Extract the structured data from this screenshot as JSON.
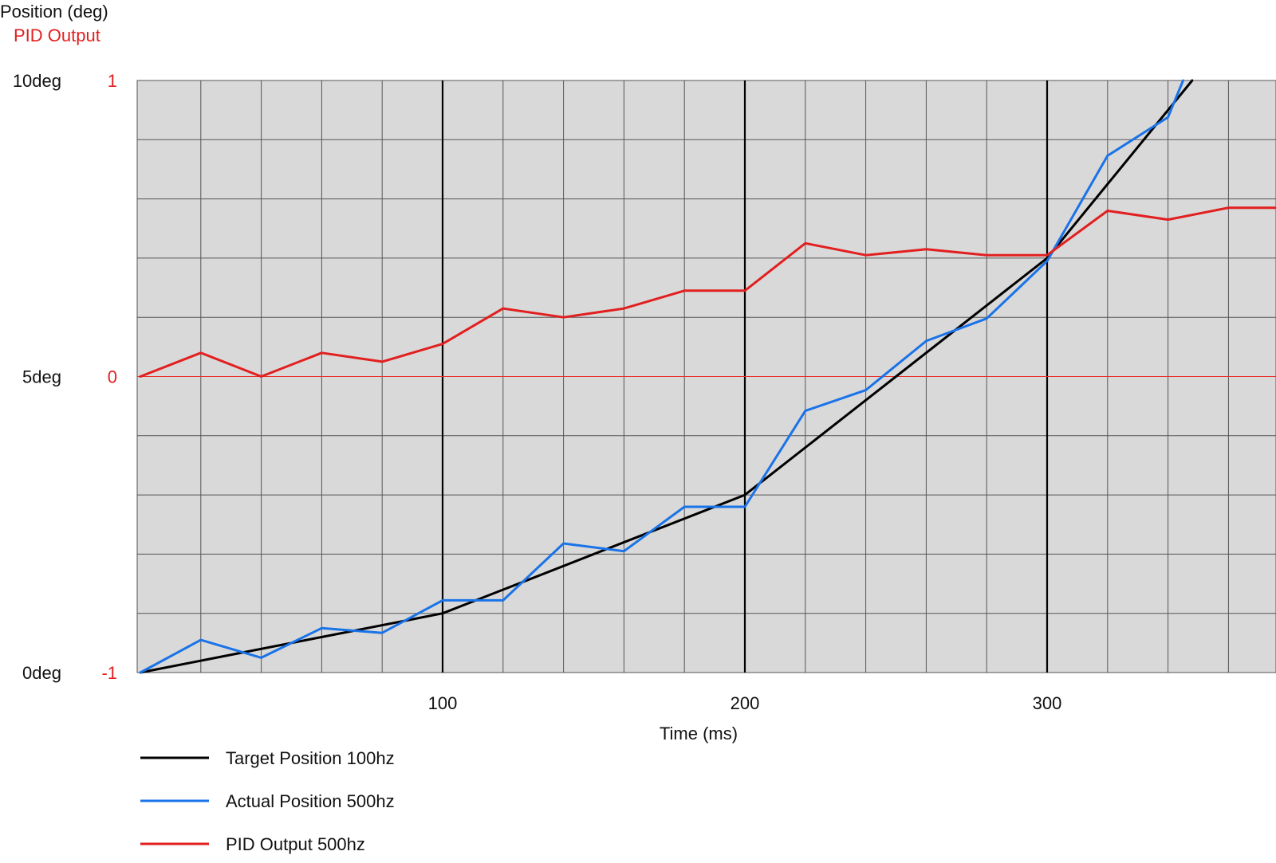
{
  "chart_data": {
    "type": "line",
    "axis_titles": {
      "y_left": "Position (deg)",
      "y_right": "PID Output",
      "x": "Time (ms)"
    },
    "x_axis": {
      "range": [
        0,
        376
      ],
      "ticks": [
        100,
        200,
        300
      ],
      "tick_labels": [
        "100",
        "200",
        "300"
      ],
      "minor_step": 20,
      "major_step": 100
    },
    "y_left_axis": {
      "range": [
        0,
        10
      ],
      "ticks": [
        0,
        5,
        10
      ],
      "tick_labels": [
        "0deg",
        "5deg",
        "10deg"
      ],
      "minor_step": 1
    },
    "y_right_axis": {
      "range": [
        -1,
        1
      ],
      "ticks": [
        -1,
        0,
        1
      ],
      "tick_labels": [
        "-1",
        "0",
        "1"
      ]
    },
    "grid": true,
    "legend_placement": "bottom-left",
    "colors": {
      "plot_background": "#d9d9d9",
      "grid_minor": "#555555",
      "grid_major": "#000000",
      "zero_line": "#e8302a",
      "target": "#000000",
      "actual": "#1a73e8",
      "pid": "#e21f1f",
      "right_axis_text": "#e21f1f"
    },
    "series": [
      {
        "name": "Target Position 100hz",
        "axis": "left",
        "color": "#000000",
        "x": [
          0,
          100,
          200,
          300,
          348
        ],
        "y": [
          0,
          1.0,
          3.0,
          7.0,
          10.0
        ]
      },
      {
        "name": "Actual Position 500hz",
        "axis": "left",
        "color": "#1a73e8",
        "x": [
          0,
          20,
          40,
          60,
          80,
          100,
          120,
          140,
          160,
          180,
          200,
          220,
          240,
          260,
          280,
          300,
          320,
          340,
          345
        ],
        "y": [
          0,
          0.55,
          0.25,
          0.75,
          0.67,
          1.22,
          1.22,
          2.18,
          2.05,
          2.8,
          2.8,
          4.42,
          4.77,
          5.6,
          5.98,
          6.95,
          8.73,
          9.38,
          10.0
        ]
      },
      {
        "name": "PID Output 500hz",
        "axis": "right",
        "color": "#e21f1f",
        "x": [
          0,
          20,
          40,
          60,
          80,
          100,
          120,
          140,
          160,
          180,
          200,
          220,
          240,
          260,
          280,
          300,
          320,
          340,
          360,
          376
        ],
        "y": [
          0,
          0.08,
          0,
          0.08,
          0.05,
          0.11,
          0.23,
          0.2,
          0.23,
          0.29,
          0.29,
          0.45,
          0.41,
          0.43,
          0.41,
          0.41,
          0.56,
          0.53,
          0.57,
          0.57
        ]
      }
    ]
  }
}
